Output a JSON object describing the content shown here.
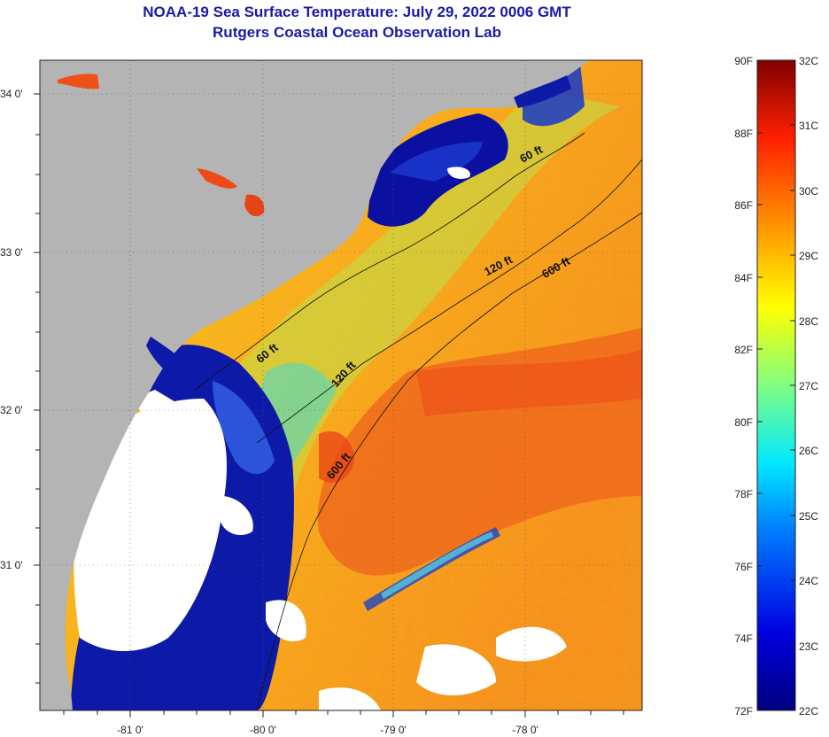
{
  "title": "NOAA-19 Sea Surface Temperature:  July 29, 2022 0006 GMT",
  "subtitle": "Rutgers Coastal Ocean Observation Lab",
  "lat_ticks": [
    "34 0'",
    "33 0'",
    "32 0'",
    "31 0'"
  ],
  "lon_ticks": [
    "-81 0'",
    "-80 0'",
    "-79 0'",
    "-78 0'"
  ],
  "isobaths": [
    "60 ft",
    "120 ft",
    "600 ft"
  ],
  "contour_labels": [
    "60 ft",
    "120 ft",
    "600 ft",
    "60 ft",
    "120 ft",
    "600 ft"
  ],
  "colorbar": {
    "fahrenheit": [
      "90F",
      "88F",
      "86F",
      "84F",
      "82F",
      "80F",
      "78F",
      "76F",
      "74F",
      "72F"
    ],
    "celsius": [
      "32C",
      "31C",
      "30C",
      "29C",
      "28C",
      "27C",
      "26C",
      "25C",
      "24C",
      "23C",
      "22C"
    ],
    "range_f": [
      72,
      90
    ],
    "range_c": [
      22,
      32
    ]
  },
  "colors": {
    "land": "#b4b4b4",
    "cloud": "#ffffff",
    "cold": "#0a0a96",
    "warm": "#f06018",
    "title": "#1a1aa8"
  }
}
